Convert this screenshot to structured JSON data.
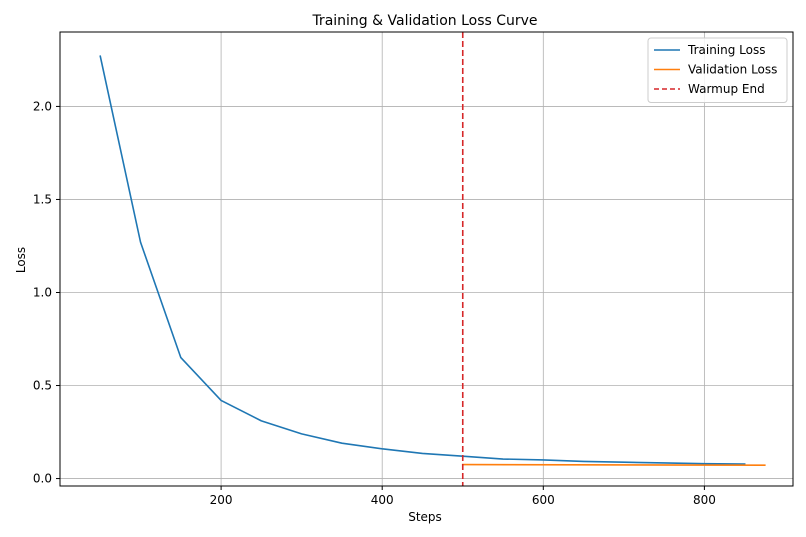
{
  "chart_data": {
    "type": "line",
    "title": "Training & Validation Loss Curve",
    "xlabel": "Steps",
    "ylabel": "Loss",
    "xlim": [
      0,
      910
    ],
    "ylim": [
      -0.04,
      2.4
    ],
    "xticks": [
      200,
      400,
      600,
      800
    ],
    "yticks": [
      0.0,
      0.5,
      1.0,
      1.5,
      2.0
    ],
    "xtick_labels": [
      "200",
      "400",
      "600",
      "800"
    ],
    "ytick_labels": [
      "0.0",
      "0.5",
      "1.0",
      "1.5",
      "2.0"
    ],
    "grid": true,
    "legend_position": "top-right",
    "series": [
      {
        "name": "Training Loss",
        "color": "#1f77b4",
        "style": "solid",
        "x": [
          50,
          100,
          150,
          200,
          250,
          300,
          350,
          400,
          450,
          500,
          550,
          600,
          650,
          700,
          750,
          800,
          850
        ],
        "y": [
          2.27,
          1.27,
          0.65,
          0.42,
          0.31,
          0.24,
          0.19,
          0.16,
          0.135,
          0.12,
          0.105,
          0.1,
          0.092,
          0.088,
          0.084,
          0.08,
          0.078
        ]
      },
      {
        "name": "Validation Loss",
        "color": "#ff7f0e",
        "style": "solid",
        "x": [
          500,
          875
        ],
        "y": [
          0.075,
          0.072
        ]
      }
    ],
    "vlines": [
      {
        "name": "Warmup End",
        "x": 500,
        "color": "#d62728",
        "style": "dashed"
      }
    ]
  }
}
